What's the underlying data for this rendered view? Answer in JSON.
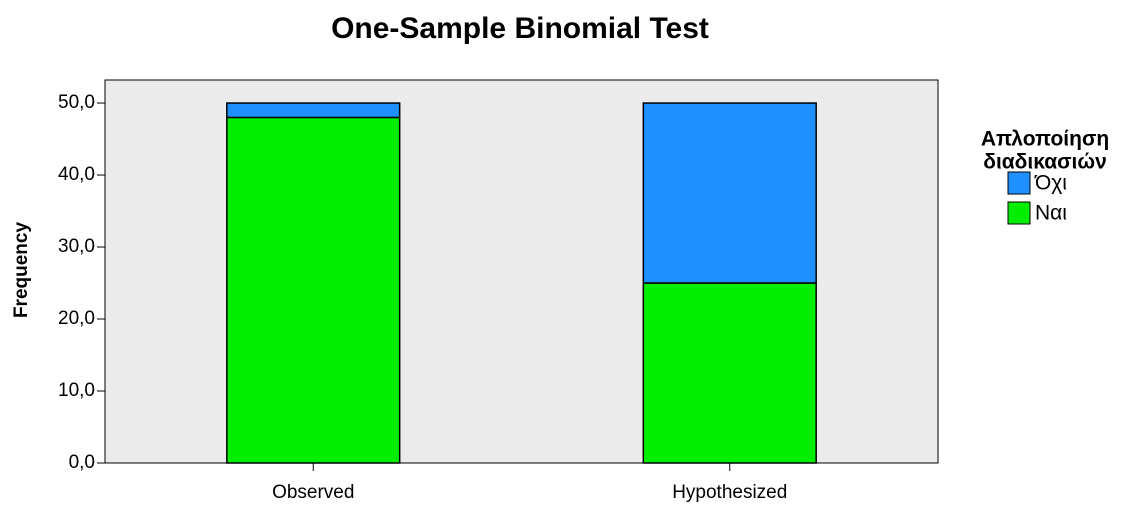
{
  "chart_data": {
    "type": "stacked_bar",
    "title": "One-Sample Binomial Test",
    "y_label": "Frequency",
    "categories": [
      "Observed",
      "Hypothesized"
    ],
    "series": [
      {
        "name": "Όχι",
        "color": "#1e90ff",
        "values": [
          2,
          25
        ]
      },
      {
        "name": "Ναι",
        "color": "#00ee00",
        "values": [
          48,
          25
        ]
      }
    ],
    "legend_title": [
      "Απλοποίηση",
      "διαδικασιών"
    ],
    "legend": "right",
    "ylim": [
      0,
      53.2
    ],
    "yticks": [
      {
        "value": 0,
        "label": "0,0"
      },
      {
        "value": 10,
        "label": "10,0"
      },
      {
        "value": 20,
        "label": "20,0"
      },
      {
        "value": 30,
        "label": "30,0"
      },
      {
        "value": 40,
        "label": "40,0"
      },
      {
        "value": 50,
        "label": "50,0"
      }
    ]
  }
}
